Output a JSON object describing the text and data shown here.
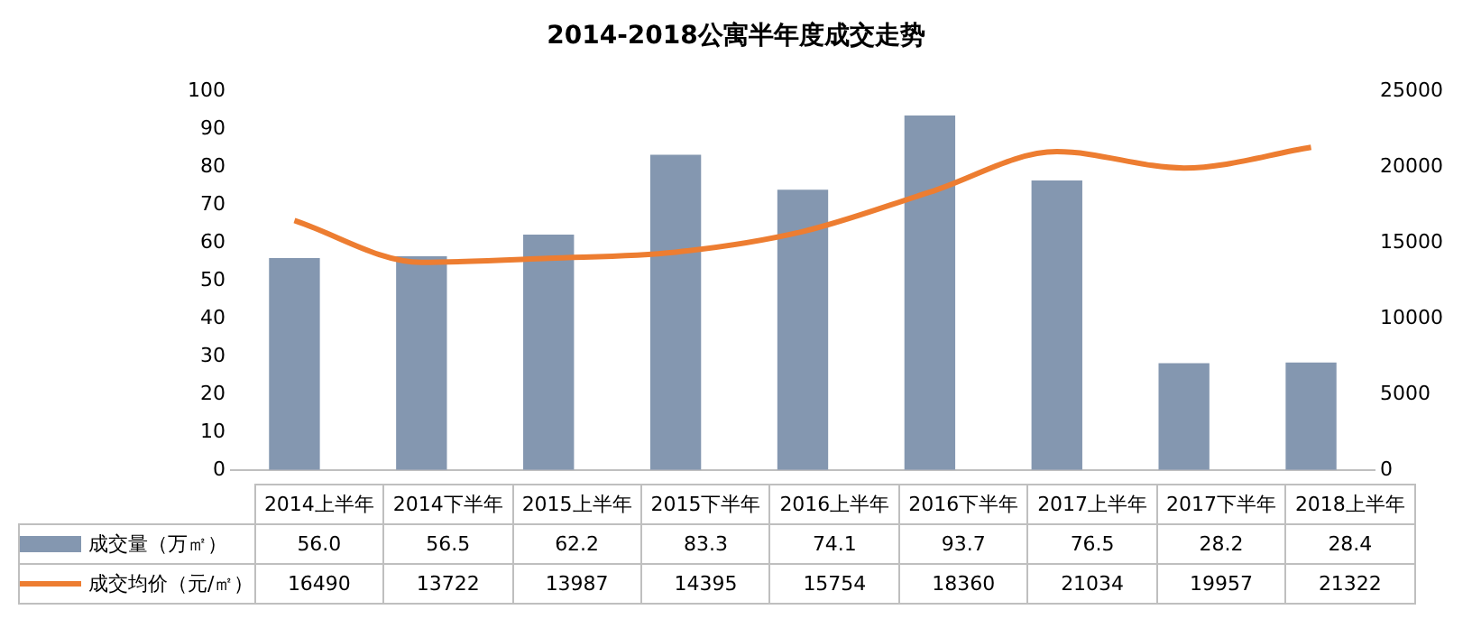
{
  "chart_data": {
    "type": "bar",
    "title": "2014-2018公寓半年度成交走势",
    "categories": [
      "2014上半年",
      "2014下半年",
      "2015上半年",
      "2015下半年",
      "2016上半年",
      "2016下半年",
      "2017上半年",
      "2017下半年",
      "2018上半年"
    ],
    "series": [
      {
        "name": "成交量（万㎡）",
        "color": "#8497b0",
        "values": [
          56.0,
          56.5,
          62.2,
          83.3,
          74.1,
          93.7,
          76.5,
          28.2,
          28.4
        ],
        "value_labels": [
          "56.0",
          "56.5",
          "62.2",
          "83.3",
          "74.1",
          "93.7",
          "76.5",
          "28.2",
          "28.4"
        ]
      },
      {
        "name": "成交均价（元/㎡）",
        "type": "line",
        "axis": "y2",
        "color": "#ed7d31",
        "values": [
          16490,
          13722,
          13987,
          14395,
          15754,
          18360,
          21034,
          19957,
          21322
        ]
      }
    ],
    "ylim": [
      0,
      100
    ],
    "yticks": [
      0,
      10,
      20,
      30,
      40,
      50,
      60,
      70,
      80,
      90,
      100
    ],
    "y2lim": [
      0,
      25000
    ],
    "y2ticks": [
      0,
      5000,
      10000,
      15000,
      20000,
      25000
    ],
    "grid": false,
    "legend": "bottom",
    "data_labels": true,
    "marker": "none"
  }
}
